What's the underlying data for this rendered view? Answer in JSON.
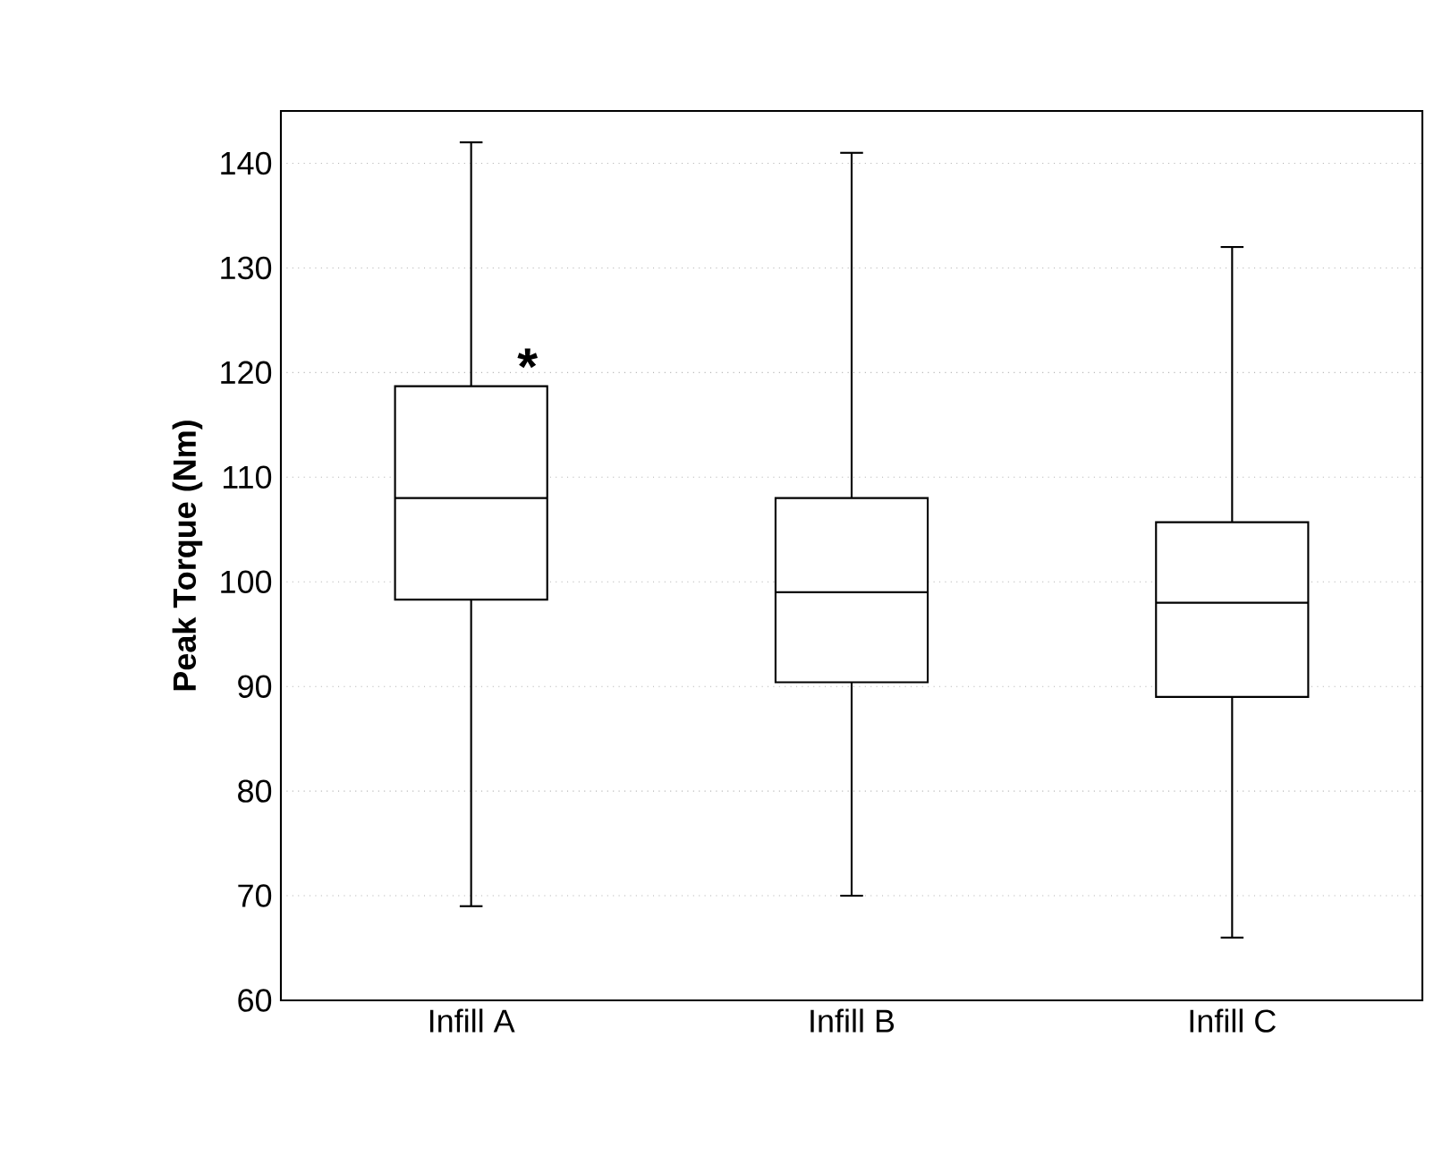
{
  "chart_data": {
    "type": "box",
    "ylabel": "Peak Torque (Nm)",
    "categories": [
      "Infill A",
      "Infill B",
      "Infill C"
    ],
    "boxes": [
      {
        "low": 69,
        "q1": 98.3,
        "median": 108,
        "q3": 118.7,
        "high": 142
      },
      {
        "low": 70,
        "q1": 90.4,
        "median": 99,
        "q3": 108,
        "high": 141
      },
      {
        "low": 66,
        "q1": 89,
        "median": 98,
        "q3": 105.7,
        "high": 132
      }
    ],
    "color": "#000000",
    "ylim": [
      60,
      145
    ],
    "yticks": [
      60,
      70,
      80,
      90,
      100,
      110,
      120,
      130,
      140
    ],
    "grid": "y",
    "annotations": [
      {
        "text": "*",
        "x": "Infill A",
        "y": 120
      }
    ]
  }
}
